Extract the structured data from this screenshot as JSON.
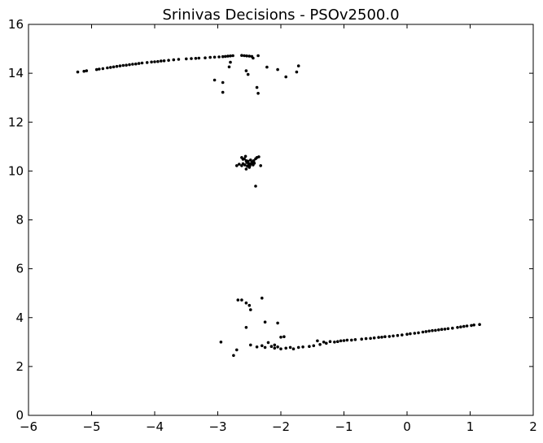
{
  "chart_data": {
    "type": "scatter",
    "title": "Srinivas Decisions - PSOv2500.0",
    "xlabel": "",
    "ylabel": "",
    "xlim": [
      -6,
      2
    ],
    "ylim": [
      0,
      16
    ],
    "xticks": [
      -6,
      -5,
      -4,
      -3,
      -2,
      -1,
      0,
      1,
      2
    ],
    "yticks": [
      0,
      2,
      4,
      6,
      8,
      10,
      12,
      14,
      16
    ],
    "xtick_labels": [
      "−6",
      "−5",
      "−4",
      "−3",
      "−2",
      "−1",
      "0",
      "1",
      "2"
    ],
    "ytick_labels": [
      "0",
      "2",
      "4",
      "6",
      "8",
      "10",
      "12",
      "14",
      "16"
    ],
    "grid": false,
    "marker_color": "#000000",
    "series": [
      {
        "points": [
          [
            -5.22,
            14.05
          ],
          [
            -5.12,
            14.08
          ],
          [
            -5.08,
            14.1
          ],
          [
            -4.92,
            14.15
          ],
          [
            -4.88,
            14.17
          ],
          [
            -4.82,
            14.19
          ],
          [
            -4.75,
            14.22
          ],
          [
            -4.7,
            14.24
          ],
          [
            -4.65,
            14.26
          ],
          [
            -4.6,
            14.28
          ],
          [
            -4.55,
            14.3
          ],
          [
            -4.5,
            14.32
          ],
          [
            -4.45,
            14.33
          ],
          [
            -4.4,
            14.35
          ],
          [
            -4.35,
            14.37
          ],
          [
            -4.3,
            14.38
          ],
          [
            -4.25,
            14.4
          ],
          [
            -4.2,
            14.42
          ],
          [
            -4.12,
            14.44
          ],
          [
            -4.05,
            14.46
          ],
          [
            -4.0,
            14.47
          ],
          [
            -3.95,
            14.48
          ],
          [
            -3.9,
            14.5
          ],
          [
            -3.85,
            14.51
          ],
          [
            -3.78,
            14.53
          ],
          [
            -3.7,
            14.55
          ],
          [
            -3.62,
            14.57
          ],
          [
            -3.5,
            14.59
          ],
          [
            -3.42,
            14.6
          ],
          [
            -3.35,
            14.61
          ],
          [
            -3.3,
            14.62
          ],
          [
            -3.2,
            14.63
          ],
          [
            -3.12,
            14.65
          ],
          [
            -3.05,
            14.66
          ],
          [
            -2.98,
            14.67
          ],
          [
            -2.92,
            14.68
          ],
          [
            -2.88,
            14.69
          ],
          [
            -2.84,
            14.7
          ],
          [
            -2.8,
            14.71
          ],
          [
            -2.76,
            14.72
          ],
          [
            -2.62,
            14.73
          ],
          [
            -2.58,
            14.72
          ],
          [
            -2.54,
            14.71
          ],
          [
            -2.5,
            14.7
          ],
          [
            -2.46,
            14.69
          ],
          [
            -2.44,
            14.62
          ],
          [
            -2.36,
            14.72
          ],
          [
            -2.8,
            14.45
          ],
          [
            -2.82,
            14.26
          ],
          [
            -2.55,
            14.1
          ],
          [
            -2.52,
            13.95
          ],
          [
            -2.22,
            14.25
          ],
          [
            -2.05,
            14.15
          ],
          [
            -1.72,
            14.3
          ],
          [
            -1.75,
            14.05
          ],
          [
            -1.92,
            13.85
          ],
          [
            -3.05,
            13.72
          ],
          [
            -2.92,
            13.62
          ],
          [
            -2.92,
            13.22
          ],
          [
            -2.38,
            13.42
          ],
          [
            -2.36,
            13.18
          ]
        ]
      },
      {
        "points": [
          [
            -2.62,
            10.55
          ],
          [
            -2.6,
            10.48
          ],
          [
            -2.58,
            10.5
          ],
          [
            -2.56,
            10.6
          ],
          [
            -2.55,
            10.42
          ],
          [
            -2.54,
            10.35
          ],
          [
            -2.52,
            10.4
          ],
          [
            -2.5,
            10.3
          ],
          [
            -2.48,
            10.45
          ],
          [
            -2.46,
            10.38
          ],
          [
            -2.44,
            10.25
          ],
          [
            -2.42,
            10.32
          ],
          [
            -2.4,
            10.5
          ],
          [
            -2.38,
            10.55
          ],
          [
            -2.35,
            10.58
          ],
          [
            -2.57,
            10.25
          ],
          [
            -2.53,
            10.2
          ],
          [
            -2.51,
            10.28
          ],
          [
            -2.49,
            10.22
          ],
          [
            -2.47,
            10.3
          ],
          [
            -2.6,
            10.3
          ],
          [
            -2.62,
            10.22
          ],
          [
            -2.66,
            10.28
          ],
          [
            -2.7,
            10.22
          ],
          [
            -2.55,
            10.08
          ],
          [
            -2.45,
            10.35
          ],
          [
            -2.43,
            10.42
          ],
          [
            -2.32,
            10.22
          ],
          [
            -2.4,
            9.38
          ],
          [
            -2.5,
            10.15
          ]
        ]
      },
      {
        "points": [
          [
            -2.68,
            4.72
          ],
          [
            -2.62,
            4.72
          ],
          [
            -2.55,
            4.6
          ],
          [
            -2.5,
            4.5
          ],
          [
            -2.48,
            4.32
          ],
          [
            -2.3,
            4.8
          ],
          [
            -2.25,
            3.82
          ],
          [
            -2.05,
            3.78
          ],
          [
            -2.55,
            3.6
          ],
          [
            -2.0,
            3.2
          ],
          [
            -1.95,
            3.22
          ],
          [
            -2.95,
            3.0
          ],
          [
            -2.48,
            2.88
          ],
          [
            -2.2,
            2.98
          ],
          [
            -2.3,
            2.85
          ],
          [
            -2.38,
            2.8
          ],
          [
            -2.25,
            2.78
          ],
          [
            -2.15,
            2.82
          ],
          [
            -2.1,
            2.75
          ],
          [
            -2.05,
            2.8
          ],
          [
            -2.0,
            2.72
          ],
          [
            -1.92,
            2.75
          ],
          [
            -1.85,
            2.78
          ],
          [
            -1.8,
            2.72
          ],
          [
            -1.72,
            2.78
          ],
          [
            -1.65,
            2.8
          ],
          [
            -1.55,
            2.82
          ],
          [
            -1.48,
            2.85
          ],
          [
            -1.42,
            3.05
          ],
          [
            -1.38,
            2.9
          ],
          [
            -1.32,
            3.0
          ],
          [
            -1.28,
            2.95
          ],
          [
            -1.22,
            3.02
          ],
          [
            -1.15,
            3.0
          ],
          [
            -1.1,
            3.02
          ],
          [
            -1.05,
            3.05
          ],
          [
            -1.0,
            3.06
          ],
          [
            -0.95,
            3.08
          ],
          [
            -0.88,
            3.08
          ],
          [
            -0.82,
            3.1
          ],
          [
            -0.72,
            3.12
          ],
          [
            -0.65,
            3.14
          ],
          [
            -0.58,
            3.15
          ],
          [
            -0.52,
            3.17
          ],
          [
            -0.45,
            3.19
          ],
          [
            -0.4,
            3.2
          ],
          [
            -0.35,
            3.22
          ],
          [
            -0.28,
            3.23
          ],
          [
            -0.22,
            3.25
          ],
          [
            -0.15,
            3.27
          ],
          [
            -0.08,
            3.29
          ],
          [
            0.0,
            3.32
          ],
          [
            0.05,
            3.34
          ],
          [
            0.12,
            3.36
          ],
          [
            0.18,
            3.38
          ],
          [
            0.25,
            3.41
          ],
          [
            0.3,
            3.43
          ],
          [
            0.35,
            3.45
          ],
          [
            0.4,
            3.47
          ],
          [
            0.45,
            3.48
          ],
          [
            0.5,
            3.5
          ],
          [
            0.55,
            3.52
          ],
          [
            0.6,
            3.53
          ],
          [
            0.65,
            3.55
          ],
          [
            0.72,
            3.57
          ],
          [
            0.8,
            3.6
          ],
          [
            0.85,
            3.62
          ],
          [
            0.9,
            3.64
          ],
          [
            0.95,
            3.66
          ],
          [
            1.02,
            3.68
          ],
          [
            1.06,
            3.7
          ],
          [
            1.15,
            3.72
          ],
          [
            -2.7,
            2.68
          ],
          [
            -2.75,
            2.45
          ],
          [
            -2.1,
            2.88
          ]
        ]
      }
    ]
  }
}
